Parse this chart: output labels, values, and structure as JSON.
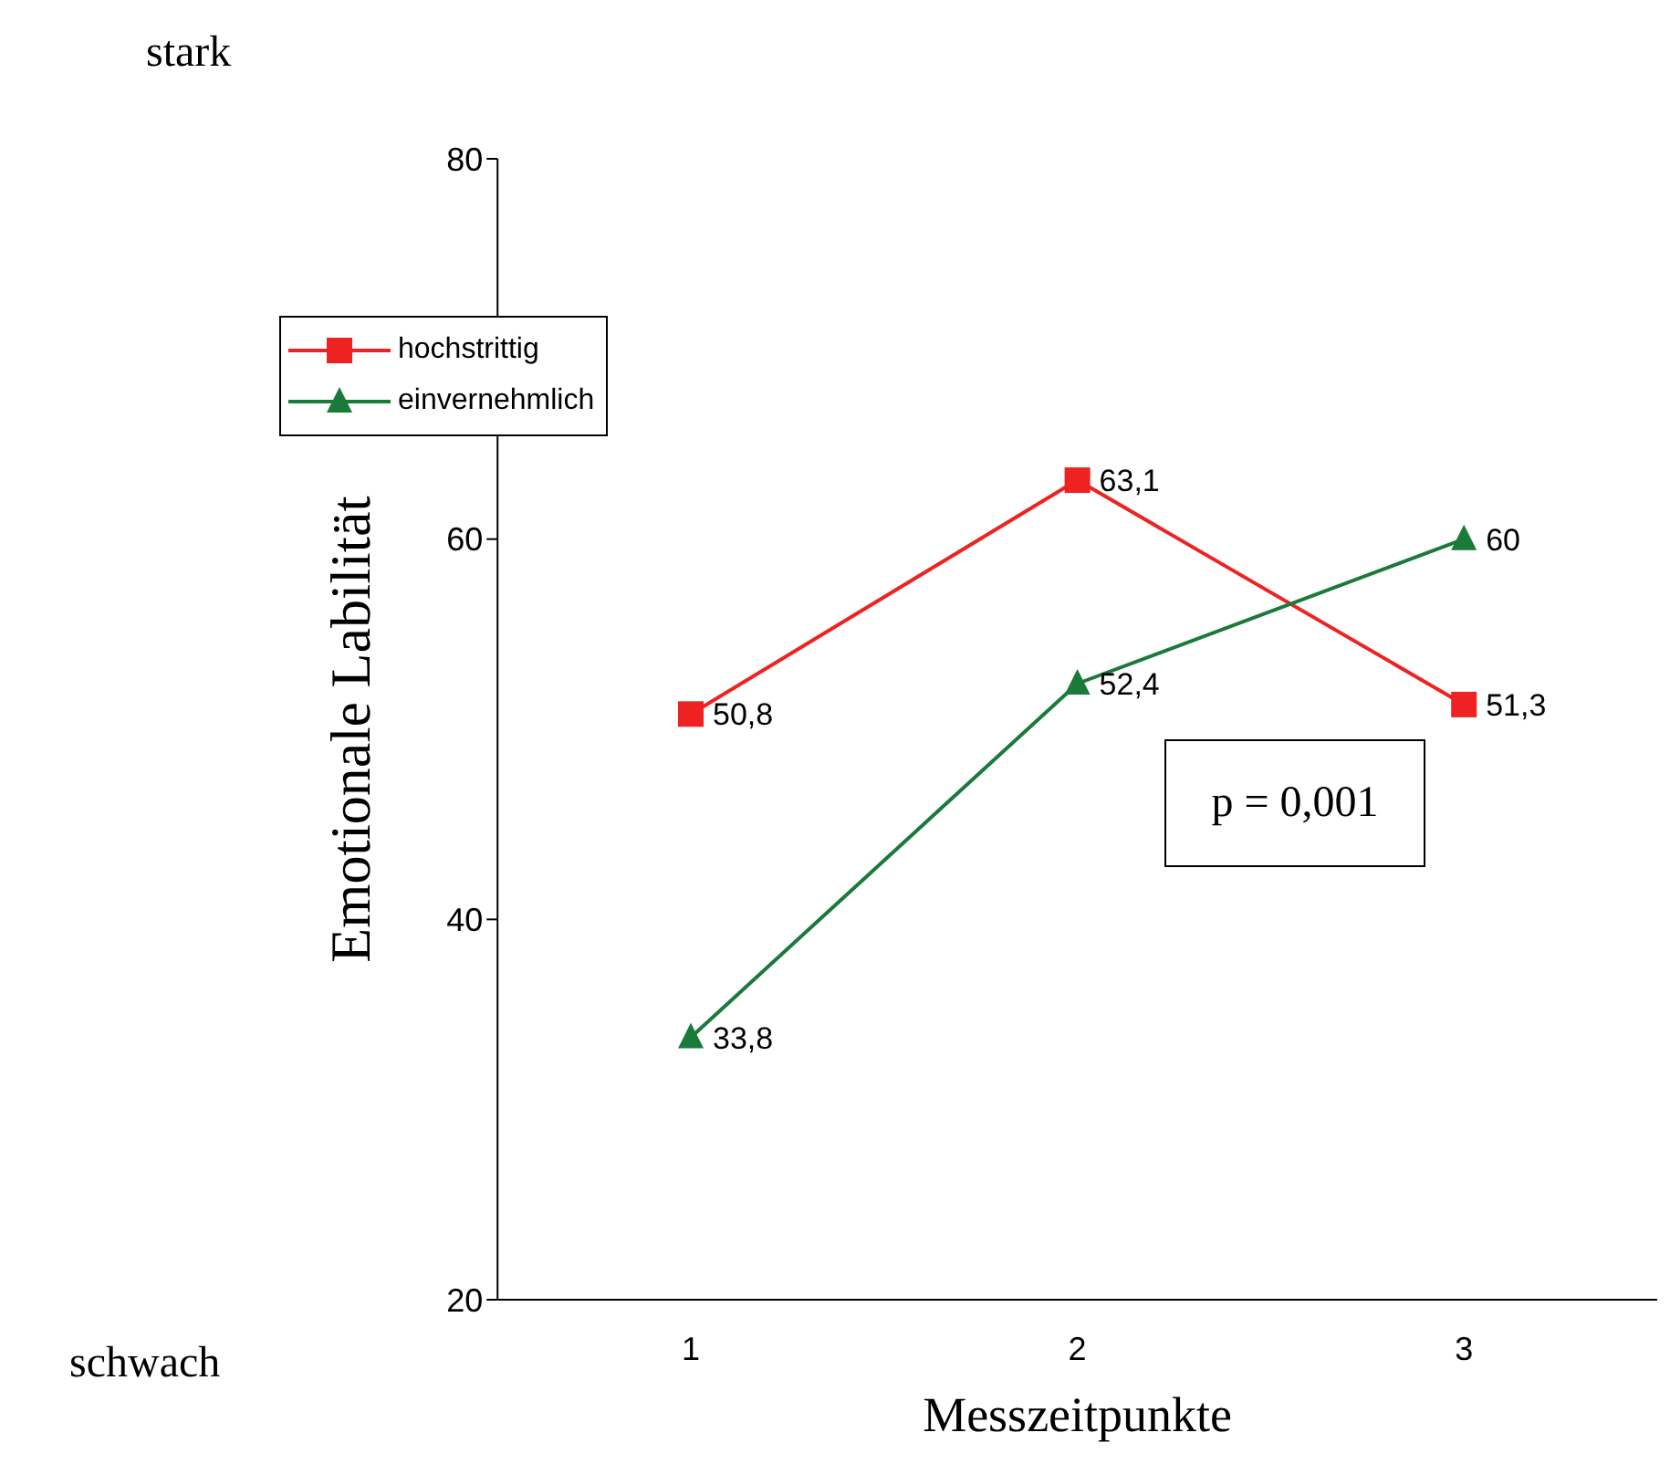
{
  "chart_data": {
    "type": "line",
    "categories": [
      "1",
      "2",
      "3"
    ],
    "xlabel": "Messzeitpunkte",
    "ylabel": "Emotionale Labilität",
    "ylim": [
      20,
      80
    ],
    "yticks": [
      20,
      40,
      60,
      80
    ],
    "grid": false,
    "legend": "top left",
    "line_style": "solid",
    "series": [
      {
        "name": "hochstrittig",
        "color": "#ee2222",
        "marker": "square",
        "values": [
          50.8,
          63.1,
          51.3
        ],
        "value_labels": [
          "50,8",
          "63,1",
          "51,3"
        ]
      },
      {
        "name": "einvernehmlich",
        "color": "#1a7a3a",
        "marker": "triangle",
        "values": [
          33.8,
          52.4,
          60
        ],
        "value_labels": [
          "33,8",
          "52,4",
          "60"
        ]
      }
    ],
    "annotations": [
      "stark",
      "schwach",
      "p = 0,001"
    ]
  }
}
